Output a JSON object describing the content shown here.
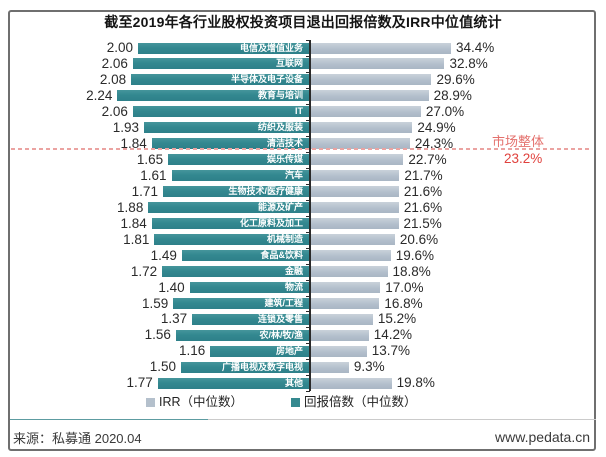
{
  "title": "截至2019年各行业股权投资项目退出回报倍数及IRR中位值统计",
  "chart_data": {
    "type": "bar",
    "orientation": "horizontal",
    "diverging": true,
    "title": "截至2019年各行业股权投资项目退出回报倍数及IRR中位值统计",
    "categories": [
      "电信及增值业务",
      "互联网",
      "半导体及电子设备",
      "教育与培训",
      "IT",
      "纺织及服装",
      "清洁技术",
      "娱乐传媒",
      "汽车",
      "生物技术/医疗健康",
      "能源及矿产",
      "化工原料及加工",
      "机械制造",
      "食品&饮料",
      "金融",
      "物流",
      "建筑/工程",
      "连锁及零售",
      "农/林/牧/渔",
      "房地产",
      "广播电视及数字电视",
      "其他"
    ],
    "series": [
      {
        "name": "回报倍数（中位数）",
        "color": "#35898f",
        "side": "left",
        "values": [
          2.0,
          2.06,
          2.08,
          2.24,
          2.06,
          1.93,
          1.84,
          1.65,
          1.61,
          1.71,
          1.88,
          1.84,
          1.81,
          1.49,
          1.72,
          1.4,
          1.59,
          1.37,
          1.56,
          1.16,
          1.5,
          1.77
        ]
      },
      {
        "name": "IRR（中位数）",
        "color": "#b4c0cc",
        "side": "right",
        "unit": "%",
        "values": [
          34.4,
          32.8,
          29.6,
          28.9,
          27.0,
          24.9,
          24.3,
          22.7,
          21.7,
          21.6,
          21.6,
          21.5,
          20.6,
          19.6,
          18.8,
          17.0,
          16.8,
          15.2,
          14.2,
          13.7,
          9.3,
          19.8
        ]
      }
    ],
    "market_line": {
      "label": "市场整体",
      "value": 23.2,
      "value_label": "23.2%",
      "after_category_index": 6,
      "line_color": "#eba3a1",
      "label_color": "#e4716d",
      "value_color": "#e0413d"
    },
    "legend_position": "bottom",
    "grid": false
  },
  "legend": [
    {
      "label": "IRR（中位数）",
      "color": "#b4c0cc"
    },
    {
      "label": "回报倍数（中位数）",
      "color": "#35898f"
    }
  ],
  "footer": {
    "source": "来源：私募通 2020.04",
    "website": "www.pedata.cn"
  }
}
